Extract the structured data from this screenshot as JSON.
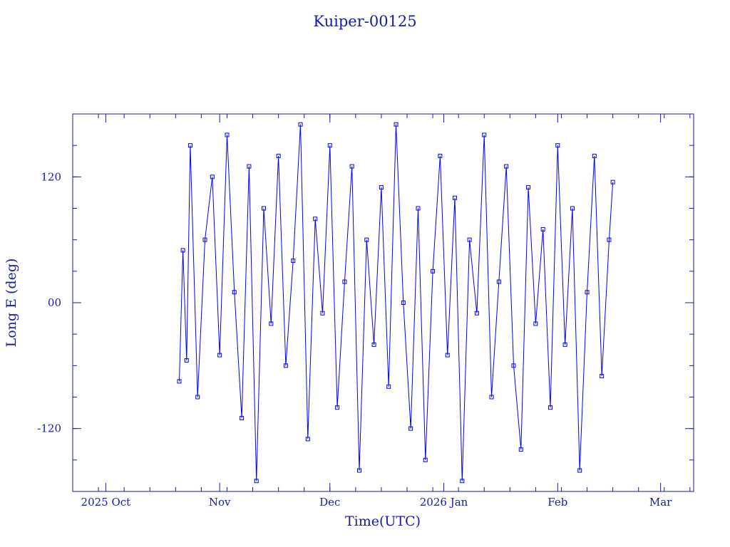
{
  "chart_data": {
    "type": "line",
    "title": "Kuiper-00125",
    "xlabel": "Time(UTC)",
    "ylabel": "Long E (deg)",
    "ylim": [
      -180,
      180
    ],
    "xlim": [
      "2025-09-22",
      "2026-03-10"
    ],
    "x_ticks": [
      {
        "date": "2025-10-01",
        "label": "2025 Oct"
      },
      {
        "date": "2025-11-01",
        "label": "Nov"
      },
      {
        "date": "2025-12-01",
        "label": "Dec"
      },
      {
        "date": "2026-01-01",
        "label": "2026 Jan"
      },
      {
        "date": "2026-02-01",
        "label": "Feb"
      },
      {
        "date": "2026-03-01",
        "label": "Mar"
      }
    ],
    "y_ticks": [
      {
        "value": 120,
        "label": "120"
      },
      {
        "value": 0,
        "label": "00"
      },
      {
        "value": -120,
        "label": "-120"
      }
    ],
    "series": [
      {
        "color": "#0000ff",
        "marker": "square",
        "x": [
          "2025-10-21",
          "2025-10-22",
          "2025-10-23",
          "2025-10-24",
          "2025-10-26",
          "2025-10-28",
          "2025-10-30",
          "2025-11-01",
          "2025-11-03",
          "2025-11-05",
          "2025-11-07",
          "2025-11-09",
          "2025-11-11",
          "2025-11-13",
          "2025-11-15",
          "2025-11-17",
          "2025-11-19",
          "2025-11-21",
          "2025-11-23",
          "2025-11-25",
          "2025-11-27",
          "2025-11-29",
          "2025-12-01",
          "2025-12-03",
          "2025-12-05",
          "2025-12-07",
          "2025-12-09",
          "2025-12-11",
          "2025-12-13",
          "2025-12-15",
          "2025-12-17",
          "2025-12-19",
          "2025-12-21",
          "2025-12-23",
          "2025-12-25",
          "2025-12-27",
          "2025-12-29",
          "2025-12-31",
          "2026-01-02",
          "2026-01-04",
          "2026-01-06",
          "2026-01-08",
          "2026-01-10",
          "2026-01-12",
          "2026-01-14",
          "2026-01-16",
          "2026-01-18",
          "2026-01-20",
          "2026-01-22",
          "2026-01-24",
          "2026-01-26",
          "2026-01-28",
          "2026-01-30",
          "2026-02-01",
          "2026-02-03",
          "2026-02-05",
          "2026-02-07",
          "2026-02-09",
          "2026-02-11",
          "2026-02-13",
          "2026-02-15",
          "2026-02-16"
        ],
        "y": [
          -75,
          50,
          -55,
          150,
          -90,
          60,
          120,
          -50,
          160,
          10,
          -110,
          130,
          -170,
          90,
          -20,
          140,
          -60,
          40,
          170,
          -130,
          80,
          -10,
          150,
          -100,
          20,
          130,
          -160,
          60,
          -40,
          110,
          -80,
          170,
          0,
          -120,
          90,
          -150,
          30,
          140,
          -50,
          100,
          -170,
          60,
          -10,
          160,
          -90,
          20,
          130,
          -60,
          -140,
          110,
          -20,
          70,
          -100,
          150,
          -40,
          90,
          -160,
          10,
          140,
          -70,
          60,
          115
        ]
      }
    ]
  }
}
